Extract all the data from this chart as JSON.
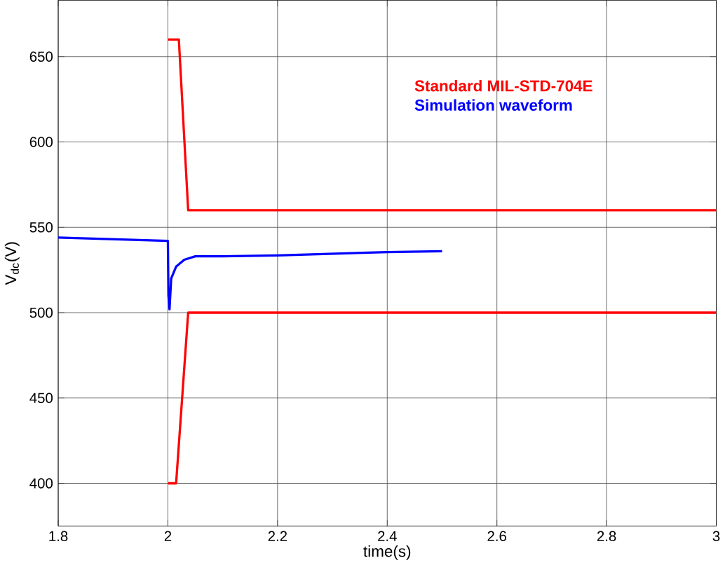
{
  "chart_data": {
    "type": "line",
    "xlabel": "time(s)",
    "ylabel": "V$_{dc}$(V)",
    "xlim": [
      1.8,
      3
    ],
    "ylim": [
      375,
      683
    ],
    "xticks": [
      1.8,
      2,
      2.2,
      2.4,
      2.6,
      2.8,
      3
    ],
    "yticks": [
      400,
      450,
      500,
      550,
      600,
      650
    ],
    "grid": true,
    "legend": "right",
    "line_style": "solid",
    "marker": "none",
    "series": [
      {
        "name": "Standard MIL-STD-704E",
        "color": "#ff0000",
        "x": [
          2.0,
          2.02,
          2.037,
          3.0
        ],
        "values": [
          660,
          660,
          560,
          560
        ]
      },
      {
        "color": "#ff0000",
        "x": [
          2.0,
          2.015,
          2.037,
          3.0
        ],
        "values": [
          400,
          400,
          500,
          500
        ]
      },
      {
        "name": "Simulation waveform",
        "color": "#0000ff",
        "x": [
          1.8,
          1.9,
          2.0,
          2.001,
          2.003,
          2.006,
          2.015,
          2.03,
          2.05,
          2.1,
          2.2,
          2.3,
          2.4,
          2.5
        ],
        "values": [
          544,
          543,
          542,
          510,
          502,
          520,
          527,
          531,
          533,
          533,
          533.5,
          534.5,
          535.5,
          536
        ]
      }
    ]
  }
}
